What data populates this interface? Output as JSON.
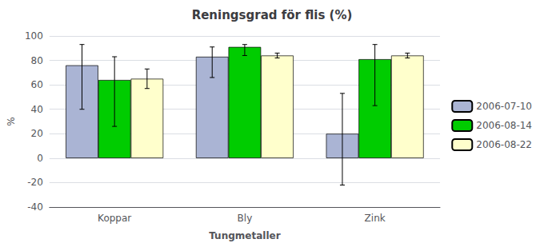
{
  "chart_data": {
    "type": "bar",
    "title": "Reningsgrad för flis (%)",
    "xlabel": "Tungmetaller",
    "ylabel": "%",
    "categories": [
      "Koppar",
      "Bly",
      "Zink"
    ],
    "series": [
      {
        "name": "2006-07-10",
        "color": "#aab4d4",
        "values": [
          76,
          83,
          20
        ],
        "errors_pos": [
          17,
          8,
          33
        ],
        "errors_neg": [
          36,
          17,
          42
        ]
      },
      {
        "name": "2006-08-14",
        "color": "#00cc00",
        "values": [
          64,
          91,
          81
        ],
        "errors_pos": [
          19,
          2,
          12
        ],
        "errors_neg": [
          38,
          7,
          38
        ]
      },
      {
        "name": "2006-08-22",
        "color": "#ffffcc",
        "values": [
          65,
          84,
          84
        ],
        "errors_pos": [
          8,
          2,
          2
        ],
        "errors_neg": [
          8,
          2,
          2
        ]
      }
    ],
    "ylim": [
      -40,
      100
    ],
    "yticks": [
      -40,
      -20,
      0,
      20,
      40,
      60,
      80,
      100
    ],
    "grid": true,
    "legend": "right"
  }
}
